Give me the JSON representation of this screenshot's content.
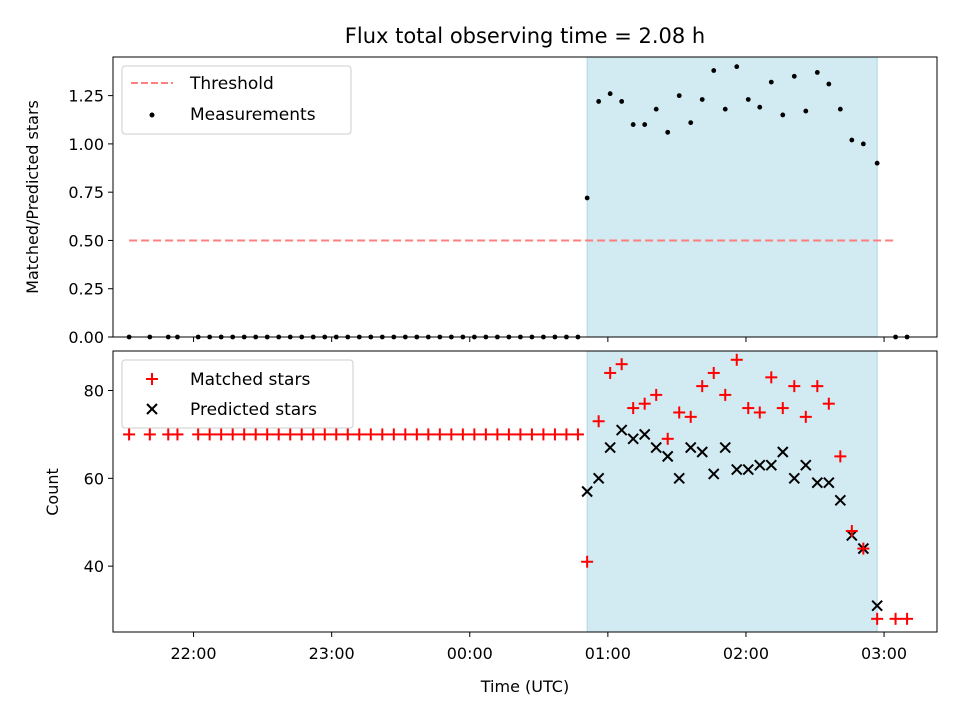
{
  "title": "Flux total observing time = 2.08 h",
  "colors": {
    "span": "#add8e6",
    "threshold": "#ff7f7f",
    "matched": "#ff0000",
    "predicted": "#000000",
    "measurement": "#000000"
  },
  "chart_data": [
    {
      "type": "scatter",
      "ylabel": "Matched/Predicted stars",
      "xlim": [
        "21:25",
        "03:23"
      ],
      "ylim": [
        0,
        1.45
      ],
      "yticks": [
        0,
        0.25,
        0.5,
        0.75,
        1.0,
        1.25
      ],
      "ytick_labels": [
        "0.00",
        "0.25",
        "0.50",
        "0.75",
        "1.00",
        "1.25"
      ],
      "xticks": [
        "22:00",
        "23:00",
        "00:00",
        "01:00",
        "02:00",
        "03:00"
      ],
      "shaded_span": [
        "00:51",
        "02:57"
      ],
      "legend": {
        "location": "upper-left",
        "entries": [
          "Threshold",
          "Measurements"
        ]
      },
      "threshold": {
        "name": "Threshold",
        "y": 0.5,
        "x_range": [
          "21:32",
          "03:05"
        ]
      },
      "measurements": {
        "name": "Measurements",
        "x": [
          "21:32",
          "21:41",
          "21:49",
          "21:53",
          "22:02",
          "22:07",
          "22:12",
          "22:17",
          "22:22",
          "22:27",
          "22:32",
          "22:37",
          "22:42",
          "22:47",
          "22:52",
          "22:57",
          "23:02",
          "23:07",
          "23:12",
          "23:17",
          "23:22",
          "23:27",
          "23:32",
          "23:37",
          "23:42",
          "23:47",
          "23:52",
          "23:57",
          "00:02",
          "00:07",
          "00:12",
          "00:17",
          "00:22",
          "00:27",
          "00:32",
          "00:37",
          "00:42",
          "00:47",
          "00:51",
          "00:56",
          "01:01",
          "01:06",
          "01:11",
          "01:16",
          "01:21",
          "01:26",
          "01:31",
          "01:36",
          "01:41",
          "01:46",
          "01:51",
          "01:56",
          "02:01",
          "02:06",
          "02:11",
          "02:16",
          "02:21",
          "02:26",
          "02:31",
          "02:36",
          "02:41",
          "02:46",
          "02:51",
          "02:57",
          "03:05",
          "03:10"
        ],
        "y": [
          0,
          0,
          0,
          0,
          0,
          0,
          0,
          0,
          0,
          0,
          0,
          0,
          0,
          0,
          0,
          0,
          0,
          0,
          0,
          0,
          0,
          0,
          0,
          0,
          0,
          0,
          0,
          0,
          0,
          0,
          0,
          0,
          0,
          0,
          0,
          0,
          0,
          0,
          0.72,
          1.22,
          1.26,
          1.22,
          1.1,
          1.1,
          1.18,
          1.06,
          1.25,
          1.11,
          1.23,
          1.38,
          1.18,
          1.4,
          1.23,
          1.19,
          1.32,
          1.15,
          1.35,
          1.17,
          1.37,
          1.31,
          1.18,
          1.02,
          1.0,
          0.9,
          0,
          0
        ]
      }
    },
    {
      "type": "scatter",
      "xlabel": "Time (UTC)",
      "ylabel": "Count",
      "xlim": [
        "21:25",
        "03:23"
      ],
      "ylim": [
        25,
        89
      ],
      "yticks": [
        40,
        60,
        80
      ],
      "xticks": [
        "22:00",
        "23:00",
        "00:00",
        "01:00",
        "02:00",
        "03:00"
      ],
      "shaded_span": [
        "00:51",
        "02:57"
      ],
      "legend": {
        "location": "upper-left",
        "entries": [
          "Matched stars",
          "Predicted stars"
        ]
      },
      "series": [
        {
          "name": "Matched stars",
          "marker": "plus",
          "x": [
            "21:32",
            "21:41",
            "21:49",
            "21:53",
            "22:02",
            "22:07",
            "22:12",
            "22:17",
            "22:22",
            "22:27",
            "22:32",
            "22:37",
            "22:42",
            "22:47",
            "22:52",
            "22:57",
            "23:02",
            "23:07",
            "23:12",
            "23:17",
            "23:22",
            "23:27",
            "23:32",
            "23:37",
            "23:42",
            "23:47",
            "23:52",
            "23:57",
            "00:02",
            "00:07",
            "00:12",
            "00:17",
            "00:22",
            "00:27",
            "00:32",
            "00:37",
            "00:42",
            "00:47",
            "00:51",
            "00:56",
            "01:01",
            "01:06",
            "01:11",
            "01:16",
            "01:21",
            "01:26",
            "01:31",
            "01:36",
            "01:41",
            "01:46",
            "01:51",
            "01:56",
            "02:01",
            "02:06",
            "02:11",
            "02:16",
            "02:21",
            "02:26",
            "02:31",
            "02:36",
            "02:41",
            "02:46",
            "02:51",
            "02:57",
            "03:05",
            "03:10"
          ],
          "y": [
            70,
            70,
            70,
            70,
            70,
            70,
            70,
            70,
            70,
            70,
            70,
            70,
            70,
            70,
            70,
            70,
            70,
            70,
            70,
            70,
            70,
            70,
            70,
            70,
            70,
            70,
            70,
            70,
            70,
            70,
            70,
            70,
            70,
            70,
            70,
            70,
            70,
            70,
            41,
            73,
            84,
            86,
            76,
            77,
            79,
            69,
            75,
            74,
            81,
            84,
            79,
            87,
            76,
            75,
            83,
            76,
            81,
            74,
            81,
            77,
            65,
            48,
            44,
            28,
            28,
            28
          ]
        },
        {
          "name": "Predicted stars",
          "marker": "x",
          "x": [
            "00:51",
            "00:56",
            "01:01",
            "01:06",
            "01:11",
            "01:16",
            "01:21",
            "01:26",
            "01:31",
            "01:36",
            "01:41",
            "01:46",
            "01:51",
            "01:56",
            "02:01",
            "02:06",
            "02:11",
            "02:16",
            "02:21",
            "02:26",
            "02:31",
            "02:36",
            "02:41",
            "02:46",
            "02:51",
            "02:57"
          ],
          "y": [
            57,
            60,
            67,
            71,
            69,
            70,
            67,
            65,
            60,
            67,
            66,
            61,
            67,
            62,
            62,
            63,
            63,
            66,
            60,
            63,
            59,
            59,
            55,
            47,
            44,
            31
          ]
        }
      ]
    }
  ]
}
